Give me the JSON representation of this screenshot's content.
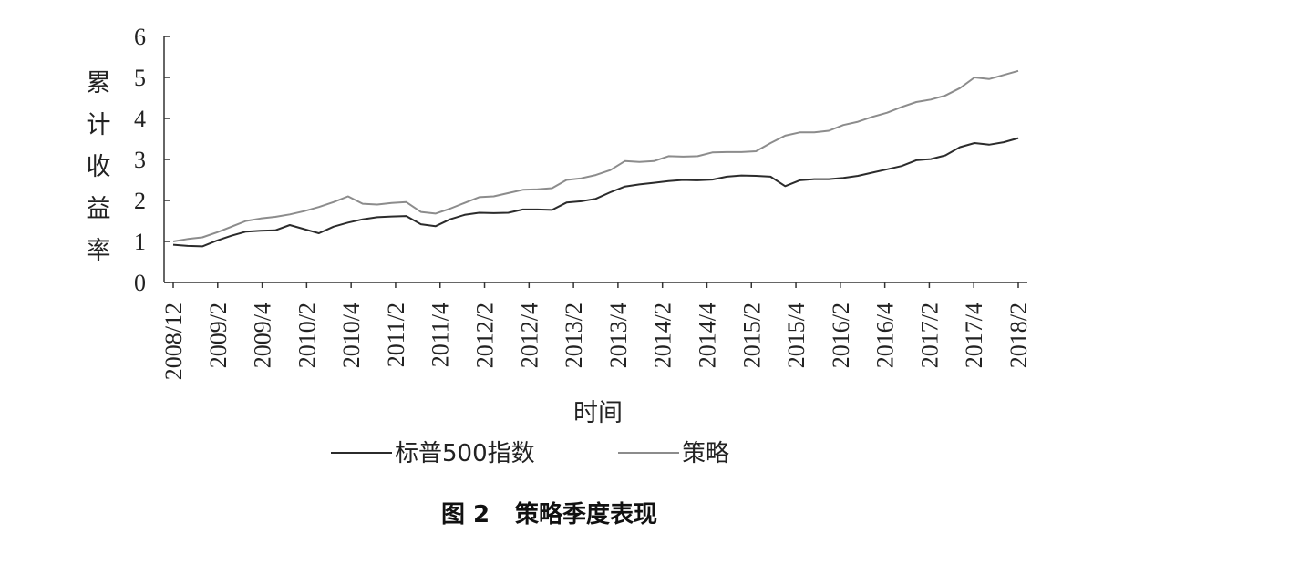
{
  "chart_data": {
    "type": "line",
    "title": "",
    "caption": {
      "figure_label": "图 2",
      "text": "策略季度表现"
    },
    "xlabel": "时间",
    "ylabel": "累计收益率",
    "ylim": [
      0,
      6
    ],
    "yticks": [
      0,
      1,
      2,
      3,
      4,
      5,
      6
    ],
    "x_tick_labels": [
      "2008/12",
      "2009/2",
      "2009/4",
      "2010/2",
      "2010/4",
      "2011/2",
      "2011/4",
      "2012/2",
      "2012/4",
      "2013/2",
      "2013/4",
      "2014/2",
      "2014/4",
      "2015/2",
      "2015/4",
      "2016/2",
      "2016/4",
      "2017/2",
      "2017/4",
      "2018/2"
    ],
    "grid": false,
    "legend_position": "bottom",
    "series": [
      {
        "name": "标普500指数",
        "color": "#2b2b2b",
        "values": [
          0.92,
          0.89,
          0.88,
          1.02,
          1.14,
          1.24,
          1.26,
          1.27,
          1.4,
          1.3,
          1.2,
          1.36,
          1.46,
          1.54,
          1.59,
          1.61,
          1.62,
          1.42,
          1.37,
          1.54,
          1.65,
          1.7,
          1.69,
          1.7,
          1.78,
          1.78,
          1.77,
          1.95,
          1.98,
          2.04,
          2.2,
          2.34,
          2.39,
          2.43,
          2.47,
          2.5,
          2.49,
          2.51,
          2.58,
          2.61,
          2.6,
          2.58,
          2.35,
          2.49,
          2.52,
          2.52,
          2.55,
          2.6,
          2.68,
          2.76,
          2.84,
          2.98,
          3.01,
          3.1,
          3.3,
          3.4,
          3.36,
          3.42,
          3.52
        ]
      },
      {
        "name": "策略",
        "color": "#8c8c8c",
        "values": [
          1.0,
          1.06,
          1.1,
          1.22,
          1.36,
          1.5,
          1.56,
          1.6,
          1.66,
          1.74,
          1.84,
          1.96,
          2.1,
          1.92,
          1.9,
          1.94,
          1.96,
          1.72,
          1.68,
          1.8,
          1.94,
          2.08,
          2.1,
          2.18,
          2.26,
          2.27,
          2.3,
          2.5,
          2.54,
          2.62,
          2.74,
          2.96,
          2.94,
          2.96,
          3.08,
          3.07,
          3.08,
          3.17,
          3.18,
          3.18,
          3.2,
          3.4,
          3.58,
          3.66,
          3.66,
          3.7,
          3.84,
          3.92,
          4.04,
          4.14,
          4.28,
          4.4,
          4.46,
          4.56,
          4.74,
          5.0,
          4.96,
          5.06,
          5.16
        ]
      }
    ]
  }
}
